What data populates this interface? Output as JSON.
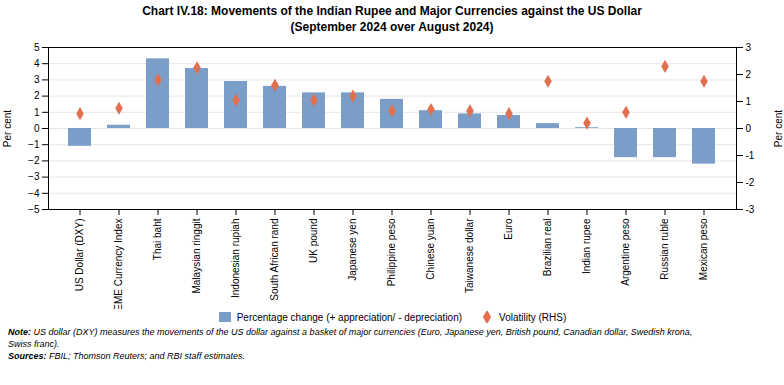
{
  "chart_data": {
    "type": "bar",
    "title": "Chart IV.18: Movements of the Indian Rupee and Major Currencies against the US Dollar\n(September 2024 over August 2024)",
    "categories": [
      "US Dollar (DXY)",
      "EME Currency Index",
      "Thai baht",
      "Malaysian ringgit",
      "Indonesian rupiah",
      "South African rand",
      "UK pound",
      "Japanese yen",
      "Philippine peso",
      "Chinese yuan",
      "Taiwanese dollar",
      "Euro",
      "Brazilian real",
      "Indian rupee",
      "Argentine peso",
      "Russian ruble",
      "Mexican peso"
    ],
    "series": [
      {
        "name": "Percentage change (+ appreciation/ - depreciation)",
        "type": "bar",
        "color": "#7b9ec8",
        "values": [
          -1.1,
          0.2,
          4.3,
          3.7,
          2.9,
          2.6,
          2.2,
          2.2,
          1.8,
          1.1,
          0.9,
          0.8,
          0.3,
          0.05,
          -1.8,
          -1.8,
          -2.2
        ]
      },
      {
        "name": "Volatility (RHS)",
        "type": "scatter",
        "marker": "diamond",
        "color": "#e07050",
        "axis": "y2",
        "values": [
          0.55,
          0.75,
          1.8,
          2.25,
          1.05,
          1.6,
          1.05,
          1.2,
          0.65,
          0.7,
          0.65,
          0.55,
          1.75,
          0.2,
          0.6,
          2.3,
          1.75
        ]
      }
    ],
    "ylabel": "Per cent",
    "y2label": "Per cent",
    "ylim": [
      -5,
      5
    ],
    "yticks": [
      -5,
      -4,
      -3,
      -2,
      -1,
      0,
      1,
      2,
      3,
      4,
      5
    ],
    "y2lim": [
      -3,
      3
    ],
    "y2ticks": [
      -3,
      -2,
      -1,
      0,
      1,
      2,
      3
    ],
    "grid": true,
    "legend": "bottom",
    "annotations": [
      "Note: US dollar (DXY) measures the movements of the US dollar against a basket of major currencies (Euro, Japanese yen, British pound, Canadian dollar, Swedish krona,\nSwiss franc).",
      "Sources: FBIL; Thomson Reuters; and RBI staff estimates."
    ]
  }
}
